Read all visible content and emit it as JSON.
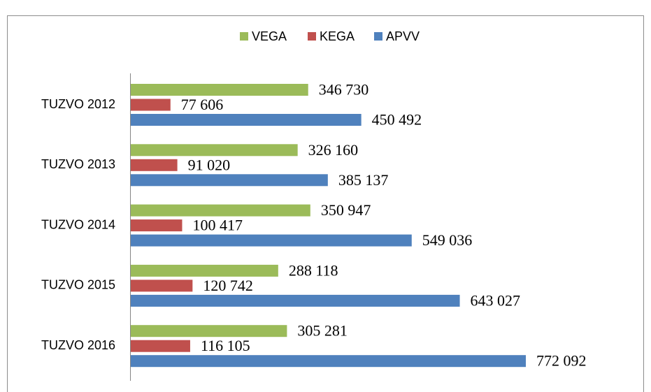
{
  "chart_data": {
    "type": "barh",
    "categories": [
      "TUZVO 2012",
      "TUZVO 2013",
      "TUZVO 2014",
      "TUZVO 2015",
      "TUZVO 2016"
    ],
    "series": [
      {
        "name": "VEGA",
        "color": "#9bbb59",
        "values": [
          346730,
          326160,
          350947,
          288118,
          305281
        ],
        "value_labels": [
          "346 730",
          "326 160",
          "350 947",
          "288 118",
          "305 281"
        ]
      },
      {
        "name": "KEGA",
        "color": "#c0504d",
        "values": [
          77606,
          91020,
          100417,
          120742,
          116105
        ],
        "value_labels": [
          "77 606",
          "91 020",
          "100 417",
          "120 742",
          "116 105"
        ]
      },
      {
        "name": "APVV",
        "color": "#4f81bd",
        "values": [
          450492,
          385137,
          549036,
          643027,
          772092
        ],
        "value_labels": [
          "450 492",
          "385 137",
          "549 036",
          "643 027",
          "772 092"
        ]
      }
    ],
    "legend": "top"
  }
}
